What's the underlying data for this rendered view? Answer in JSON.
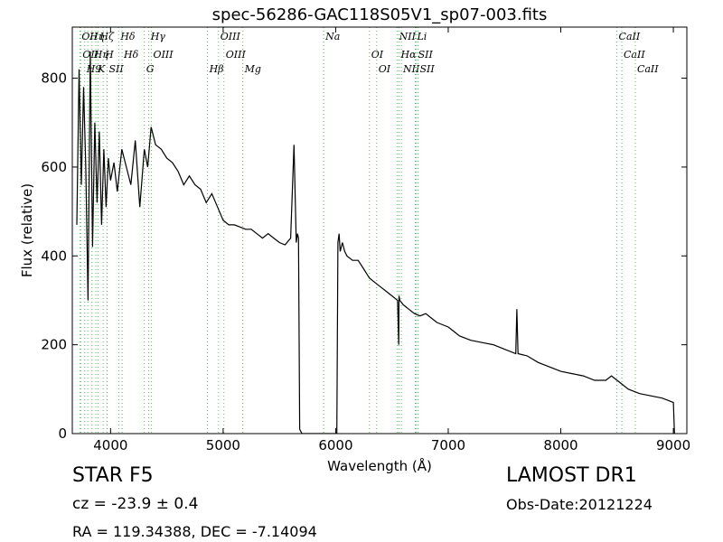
{
  "chart_data": {
    "type": "line",
    "title": "spec-56286-GAC118S05V1_sp07-003.fits",
    "xlabel": "Wavelength (Å)",
    "ylabel": "Flux (relative)",
    "xlim": [
      3660,
      9120
    ],
    "ylim": [
      0,
      915
    ],
    "xticks": [
      4000,
      5000,
      6000,
      7000,
      8000,
      9000
    ],
    "yticks": [
      0,
      200,
      400,
      600,
      800
    ],
    "grid": false,
    "line_color": "#000000",
    "marker_line_color": "#55bb55",
    "series": [
      {
        "x": [
          3700,
          3720,
          3740,
          3760,
          3780,
          3800,
          3820,
          3840,
          3860,
          3880,
          3900,
          3920,
          3940,
          3960,
          3980,
          4000,
          4030,
          4060,
          4100,
          4140,
          4180,
          4220,
          4260,
          4300,
          4330,
          4360,
          4400,
          4450,
          4500,
          4550,
          4600,
          4650,
          4700,
          4750,
          4800,
          4850,
          4900,
          4950,
          5000,
          5050,
          5100,
          5150,
          5200,
          5250,
          5300,
          5350,
          5400,
          5450,
          5500,
          5550,
          5600,
          5630,
          5650,
          5660,
          5670,
          5680,
          5700,
          5800,
          5900,
          6000,
          6010,
          6020,
          6030,
          6040,
          6060,
          6080,
          6100,
          6150,
          6200,
          6250,
          6300,
          6350,
          6400,
          6450,
          6500,
          6550,
          6560,
          6563,
          6570,
          6600,
          6650,
          6700,
          6750,
          6800,
          6850,
          6900,
          6950,
          7000,
          7050,
          7100,
          7150,
          7200,
          7300,
          7400,
          7500,
          7600,
          7610,
          7620,
          7700,
          7800,
          7900,
          8000,
          8100,
          8200,
          8300,
          8400,
          8450,
          8500,
          8550,
          8600,
          8700,
          8800,
          8900,
          8950,
          9000,
          9010
        ],
        "y": [
          470,
          820,
          560,
          780,
          600,
          300,
          860,
          420,
          700,
          520,
          680,
          470,
          640,
          510,
          620,
          570,
          610,
          545,
          640,
          600,
          560,
          660,
          510,
          640,
          600,
          690,
          650,
          640,
          620,
          610,
          590,
          560,
          580,
          560,
          550,
          520,
          540,
          510,
          480,
          470,
          470,
          465,
          460,
          460,
          450,
          440,
          450,
          440,
          430,
          425,
          440,
          650,
          430,
          450,
          440,
          10,
          0,
          0,
          0,
          0,
          0,
          430,
          450,
          410,
          430,
          410,
          400,
          390,
          390,
          370,
          350,
          340,
          330,
          320,
          310,
          300,
          200,
          310,
          300,
          290,
          280,
          270,
          265,
          270,
          260,
          250,
          245,
          240,
          230,
          220,
          215,
          210,
          205,
          200,
          190,
          180,
          280,
          180,
          175,
          160,
          150,
          140,
          135,
          130,
          120,
          120,
          130,
          120,
          110,
          100,
          90,
          85,
          80,
          75,
          70,
          0
        ]
      }
    ],
    "line_markers": [
      {
        "x": 3727,
        "label": "OII"
      },
      {
        "x": 3735,
        "label": "OII"
      },
      {
        "x": 3770,
        "label": "H9"
      },
      {
        "x": 3798,
        "label": "Hη"
      },
      {
        "x": 3835,
        "label": "Hη"
      },
      {
        "x": 3869,
        "label": "K"
      },
      {
        "x": 3889,
        "label": "Hζ"
      },
      {
        "x": 3934,
        "label": "H"
      },
      {
        "x": 3969,
        "label": "SII"
      },
      {
        "x": 4072,
        "label": "Hδ"
      },
      {
        "x": 4102,
        "label": "Hδ"
      },
      {
        "x": 4300,
        "label": "G"
      },
      {
        "x": 4340,
        "label": "Hγ"
      },
      {
        "x": 4363,
        "label": "OIII"
      },
      {
        "x": 4861,
        "label": "Hβ"
      },
      {
        "x": 4959,
        "label": "OIII"
      },
      {
        "x": 5007,
        "label": "OIII"
      },
      {
        "x": 5175,
        "label": "Mg"
      },
      {
        "x": 5893,
        "label": "Na"
      },
      {
        "x": 6300,
        "label": "OI"
      },
      {
        "x": 6364,
        "label": "OI"
      },
      {
        "x": 6548,
        "label": "NII"
      },
      {
        "x": 6563,
        "label": "Hα"
      },
      {
        "x": 6583,
        "label": "NII"
      },
      {
        "x": 6707,
        "label": "Li"
      },
      {
        "x": 6716,
        "label": "SII"
      },
      {
        "x": 6731,
        "label": "SII"
      },
      {
        "x": 8498,
        "label": "CaII"
      },
      {
        "x": 8542,
        "label": "CaII"
      },
      {
        "x": 8662,
        "label": "CaII"
      }
    ]
  },
  "labels": {
    "class_text": "STAR   F5",
    "redshift_text": "cz = -23.9 ± 0.4",
    "coords_text": "RA = 119.34388, DEC = -7.14094",
    "survey_text": "LAMOST DR1",
    "obsdate_text": "Obs-Date:20121224"
  }
}
